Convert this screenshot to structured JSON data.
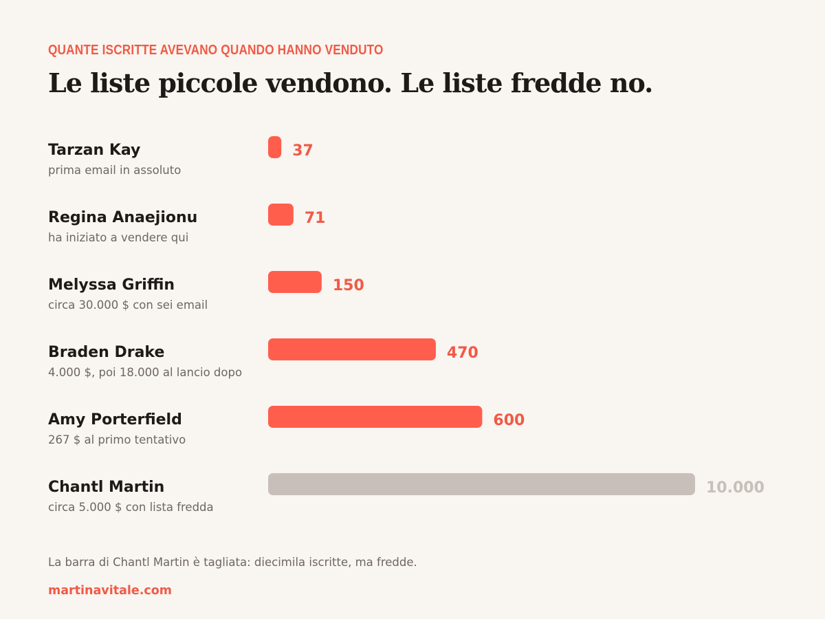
{
  "kicker": "QUANTE ISCRITTE AVEVANO QUANDO HANNO VENDUTO",
  "title": "Le liste piccole vendono. Le liste fredde no.",
  "footnote": "La barra di Chantl Martin è tagliata: diecimila iscritte, ma fredde.",
  "source": "martinavitale.com",
  "colors": {
    "accent": "#ff5e4d",
    "accent_text": "#f05a47",
    "muted_bar": "#c8bfba",
    "muted_text": "#c8bfba"
  },
  "chart_data": {
    "type": "bar",
    "orientation": "horizontal",
    "axis_truncated": true,
    "categories": [
      "Tarzan Kay",
      "Regina Anaejionu",
      "Melyssa Griffin",
      "Braden Drake",
      "Amy Porterfield",
      "Chantl Martin"
    ],
    "subtitles": [
      "prima email in assoluto",
      "ha iniziato a vendere qui",
      "circa 30.000 $ con sei email",
      "4.000 $, poi 18.000 al lancio dopo",
      "267 $ al primo tentativo",
      "circa 5.000 $ con lista fredda"
    ],
    "values": [
      37,
      71,
      150,
      470,
      600,
      10000
    ],
    "value_labels": [
      "37",
      "71",
      "150",
      "470",
      "600",
      "10.000"
    ],
    "highlight": [
      true,
      true,
      true,
      true,
      true,
      false
    ],
    "truncated": [
      false,
      false,
      false,
      false,
      false,
      true
    ],
    "display_cap": 1200
  }
}
